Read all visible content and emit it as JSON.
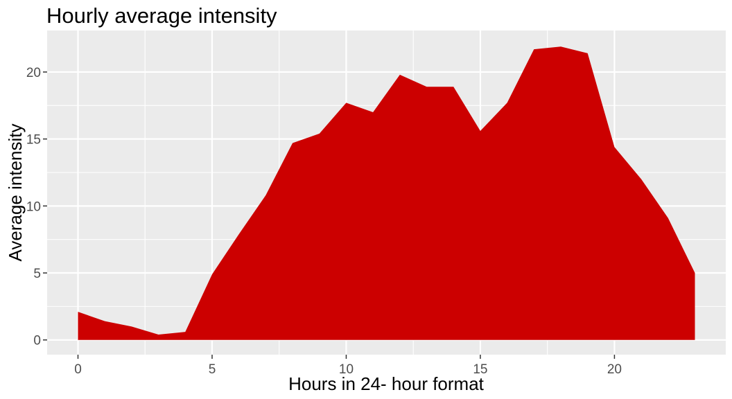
{
  "chart_data": {
    "type": "area",
    "title": "Hourly average intensity",
    "xlabel": "Hours in 24- hour format",
    "ylabel": "Average intensity",
    "x": [
      0,
      1,
      2,
      3,
      4,
      5,
      6,
      7,
      8,
      9,
      10,
      11,
      12,
      13,
      14,
      15,
      16,
      17,
      18,
      19,
      20,
      21,
      22,
      23
    ],
    "values": [
      2.1,
      1.4,
      1.0,
      0.4,
      0.6,
      4.9,
      7.9,
      10.8,
      14.7,
      15.4,
      17.7,
      17.0,
      19.8,
      18.9,
      18.9,
      15.6,
      17.7,
      21.7,
      21.9,
      21.4,
      14.4,
      12.0,
      9.1,
      5.0
    ],
    "xlim": [
      -1.15,
      24.15
    ],
    "ylim": [
      -1.1,
      23.1
    ],
    "xticks": [
      0,
      5,
      10,
      15,
      20
    ],
    "yticks": [
      0,
      5,
      10,
      15,
      20
    ],
    "xtick_labels": [
      "0",
      "5",
      "10",
      "15",
      "20"
    ],
    "ytick_labels": [
      "0",
      "5",
      "10",
      "15",
      "20"
    ],
    "grid": true,
    "legend": "none",
    "fill_color": "#cc0000",
    "panel_color": "#ebebeb",
    "grid_color": "#ffffff"
  }
}
